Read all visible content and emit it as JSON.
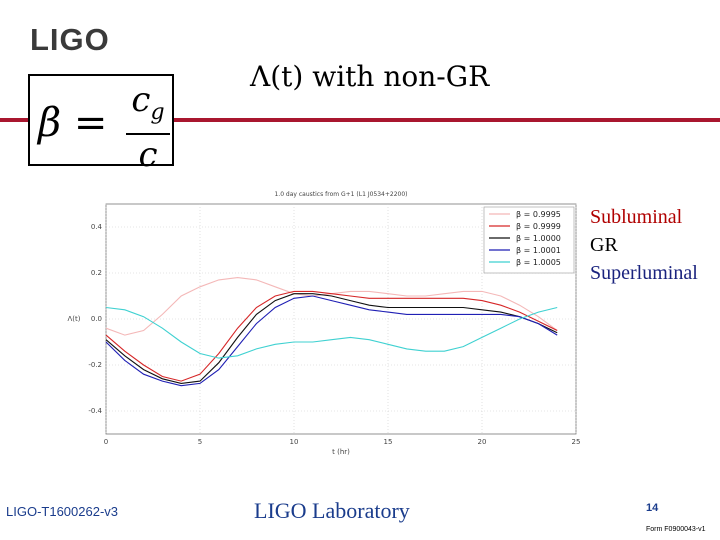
{
  "header": {
    "logo_text": "LIGO",
    "title": "Λ(t) with non-GR"
  },
  "equation": {
    "lhs": "β =",
    "numerator": "c",
    "numerator_sub": "g",
    "denominator": "c"
  },
  "side_labels": [
    {
      "text": "Subluminal",
      "color": "#b00000"
    },
    {
      "text": "GR",
      "color": "#000000"
    },
    {
      "text": "Superluminal",
      "color": "#1a237e"
    }
  ],
  "chart_data": {
    "type": "line",
    "title": "1.0 day caustics from G+1 (L1 J0534+2200)",
    "xlabel": "t (hr)",
    "ylabel": "Λ(t)",
    "xlim": [
      0,
      25
    ],
    "ylim": [
      -0.5,
      0.5
    ],
    "xticks": [
      "0",
      "5",
      "10",
      "15",
      "20",
      "25"
    ],
    "yticks": [
      "0.4",
      "0.2",
      "0.0",
      "-0.2",
      "-0.4"
    ],
    "grid": true,
    "legend_position": "top-right",
    "x": [
      0,
      1,
      2,
      3,
      4,
      5,
      6,
      7,
      8,
      9,
      10,
      11,
      12,
      13,
      14,
      15,
      16,
      17,
      18,
      19,
      20,
      21,
      22,
      23,
      24
    ],
    "series": [
      {
        "name": "β = 0.9995",
        "color": "#f4b8b8",
        "values": [
          -0.04,
          -0.07,
          -0.05,
          0.02,
          0.1,
          0.14,
          0.17,
          0.18,
          0.17,
          0.14,
          0.11,
          0.1,
          0.11,
          0.12,
          0.12,
          0.11,
          0.1,
          0.1,
          0.11,
          0.12,
          0.12,
          0.1,
          0.06,
          0.01,
          -0.05
        ]
      },
      {
        "name": "β = 0.9999",
        "color": "#d62728",
        "values": [
          -0.07,
          -0.14,
          -0.2,
          -0.25,
          -0.27,
          -0.24,
          -0.15,
          -0.04,
          0.05,
          0.1,
          0.12,
          0.12,
          0.11,
          0.1,
          0.09,
          0.09,
          0.09,
          0.09,
          0.09,
          0.09,
          0.08,
          0.06,
          0.03,
          -0.01,
          -0.05
        ]
      },
      {
        "name": "β = 1.0000",
        "color": "#111111",
        "values": [
          -0.09,
          -0.16,
          -0.22,
          -0.26,
          -0.28,
          -0.27,
          -0.19,
          -0.08,
          0.02,
          0.08,
          0.11,
          0.11,
          0.1,
          0.08,
          0.06,
          0.05,
          0.05,
          0.05,
          0.05,
          0.05,
          0.04,
          0.03,
          0.01,
          -0.02,
          -0.06
        ]
      },
      {
        "name": "β = 1.0001",
        "color": "#1f1fb4",
        "values": [
          -0.1,
          -0.18,
          -0.24,
          -0.27,
          -0.29,
          -0.28,
          -0.22,
          -0.12,
          -0.02,
          0.05,
          0.09,
          0.1,
          0.08,
          0.06,
          0.04,
          0.03,
          0.02,
          0.02,
          0.02,
          0.02,
          0.02,
          0.02,
          0.01,
          -0.02,
          -0.07
        ]
      },
      {
        "name": "β = 1.0005",
        "color": "#3fd1d1",
        "values": [
          0.05,
          0.04,
          0.01,
          -0.04,
          -0.1,
          -0.15,
          -0.17,
          -0.16,
          -0.13,
          -0.11,
          -0.1,
          -0.1,
          -0.09,
          -0.08,
          -0.09,
          -0.11,
          -0.13,
          -0.14,
          -0.14,
          -0.12,
          -0.08,
          -0.04,
          0.0,
          0.03,
          0.05
        ]
      }
    ]
  },
  "footer": {
    "doc_id": "LIGO-T1600262-v3",
    "lab": "LIGO Laboratory",
    "page": "14",
    "form": "Form F0900043-v1"
  }
}
